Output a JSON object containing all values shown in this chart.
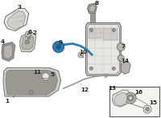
{
  "bg_color": "#ffffff",
  "part_fill": "#d0cfc8",
  "part_fill2": "#b8b5ac",
  "part_fill3": "#e8e6e0",
  "dark_fill": "#9a9890",
  "outline": "#5a5a5a",
  "highlight": "#2a7fb5",
  "highlight_dark": "#1a5f8a",
  "text_color": "#222222",
  "leader_color": "#555555",
  "inset_bg": "#f5f5f0",
  "fontsize": 5.2,
  "fig_w": 2.0,
  "fig_h": 1.47,
  "dpi": 100
}
